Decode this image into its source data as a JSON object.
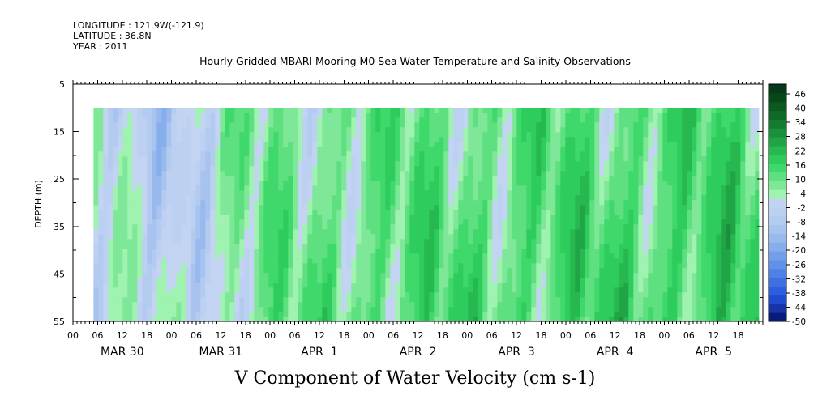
{
  "metadata": {
    "longitude": "LONGITUDE : 121.9W(-121.9)",
    "latitude": "LATITUDE : 36.8N",
    "year": "YEAR : 2011"
  },
  "chart_data": {
    "type": "heatmap",
    "title": "Hourly Gridded MBARI Mooring M0 Sea Water Temperature and Salinity Observations",
    "xlabel": "V Component of Water Velocity (cm s-1)",
    "ylabel": "DEPTH (m)",
    "x_range_hours": [
      0,
      168
    ],
    "y_range": [
      5,
      55
    ],
    "y_inverted": true,
    "y_ticks": [
      5,
      15,
      25,
      35,
      45,
      55
    ],
    "x_hour_ticks": [
      "00",
      "06",
      "12",
      "18",
      "00",
      "06",
      "12",
      "18",
      "00",
      "06",
      "12",
      "18",
      "00",
      "06",
      "12",
      "18",
      "00",
      "06",
      "12",
      "18",
      "00",
      "06",
      "12",
      "18",
      "00",
      "06",
      "12",
      "18"
    ],
    "day_labels": [
      "MAR 30",
      "MAR 31",
      "APR  1",
      "APR  2",
      "APR  3",
      "APR  4",
      "APR  5"
    ],
    "data_x_start_hour": 5,
    "data_x_end_hour": 167,
    "data_depth_top": 10,
    "data_depth_bottom": 55,
    "colorbar": {
      "labels": [
        "46",
        "40",
        "34",
        "28",
        "22",
        "16",
        "10",
        "4",
        "-2",
        "-8",
        "-14",
        "-20",
        "-26",
        "-32",
        "-38",
        "-44",
        "-50"
      ],
      "levels": [
        -50,
        -47,
        -44,
        -41,
        -38,
        -35,
        -32,
        -29,
        -26,
        -23,
        -20,
        -17,
        -14,
        -11,
        -8,
        -5,
        -2,
        1,
        4,
        7,
        10,
        13,
        16,
        19,
        22,
        25,
        28,
        31,
        34,
        37,
        40,
        43,
        46,
        49
      ],
      "colors_low": [
        "#0a1a7a",
        "#1633a8",
        "#1e4bd0",
        "#2c5fe0",
        "#3e70e4",
        "#4f80e6",
        "#6090e8",
        "#739fea",
        "#86adec",
        "#98b9ee",
        "#a8c3f0",
        "#b4cbf0",
        "#bcd0f2",
        "#c2d4f2"
      ],
      "colors_high": [
        "#9ff2b0",
        "#7fe898",
        "#5ee081",
        "#3fd86b",
        "#2ecc5c",
        "#27b850",
        "#20a445",
        "#1a903b",
        "#147c31",
        "#0f6a28",
        "#0b5820",
        "#084818",
        "#06391a"
      ]
    }
  }
}
